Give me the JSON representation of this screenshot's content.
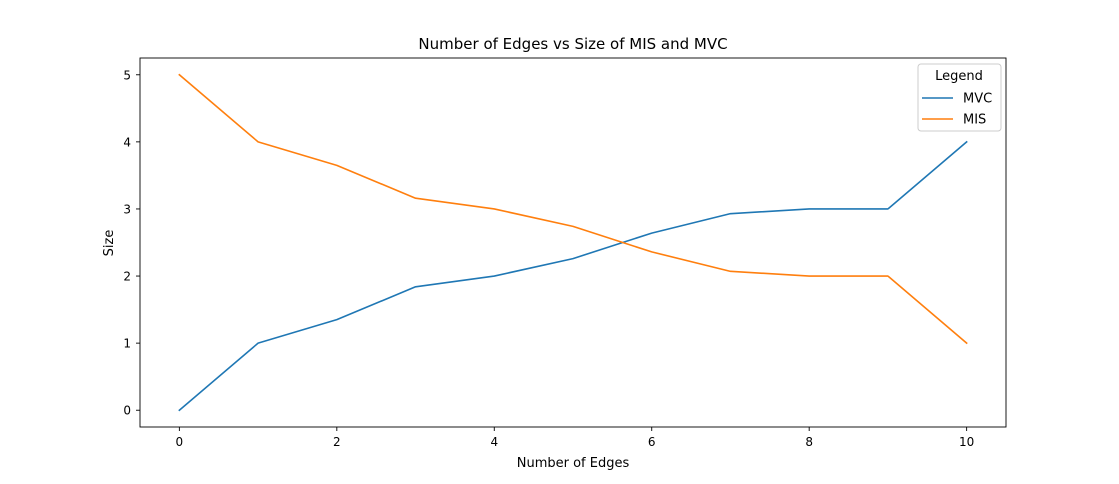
{
  "chart_data": {
    "type": "line",
    "title": "Number of Edges vs Size of MIS and MVC",
    "xlabel": "Number of Edges",
    "ylabel": "Size",
    "xlim": [
      -0.5,
      10.5
    ],
    "ylim": [
      -0.25,
      5.25
    ],
    "x_ticks": [
      0,
      2,
      4,
      6,
      8,
      10
    ],
    "y_ticks": [
      0,
      1,
      2,
      3,
      4,
      5
    ],
    "grid": false,
    "legend": {
      "title": "Legend",
      "position": "top-right"
    },
    "x": [
      0,
      1,
      2,
      3,
      4,
      5,
      6,
      7,
      8,
      9,
      10
    ],
    "series": [
      {
        "name": "MVC",
        "color": "#1f77b4",
        "values": [
          0,
          1,
          1.35,
          1.84,
          2,
          2.26,
          2.64,
          2.93,
          3,
          3,
          4
        ]
      },
      {
        "name": "MIS",
        "color": "#ff7f0e",
        "values": [
          5,
          4,
          3.65,
          3.16,
          3,
          2.74,
          2.36,
          2.07,
          2,
          2,
          1
        ]
      }
    ]
  }
}
